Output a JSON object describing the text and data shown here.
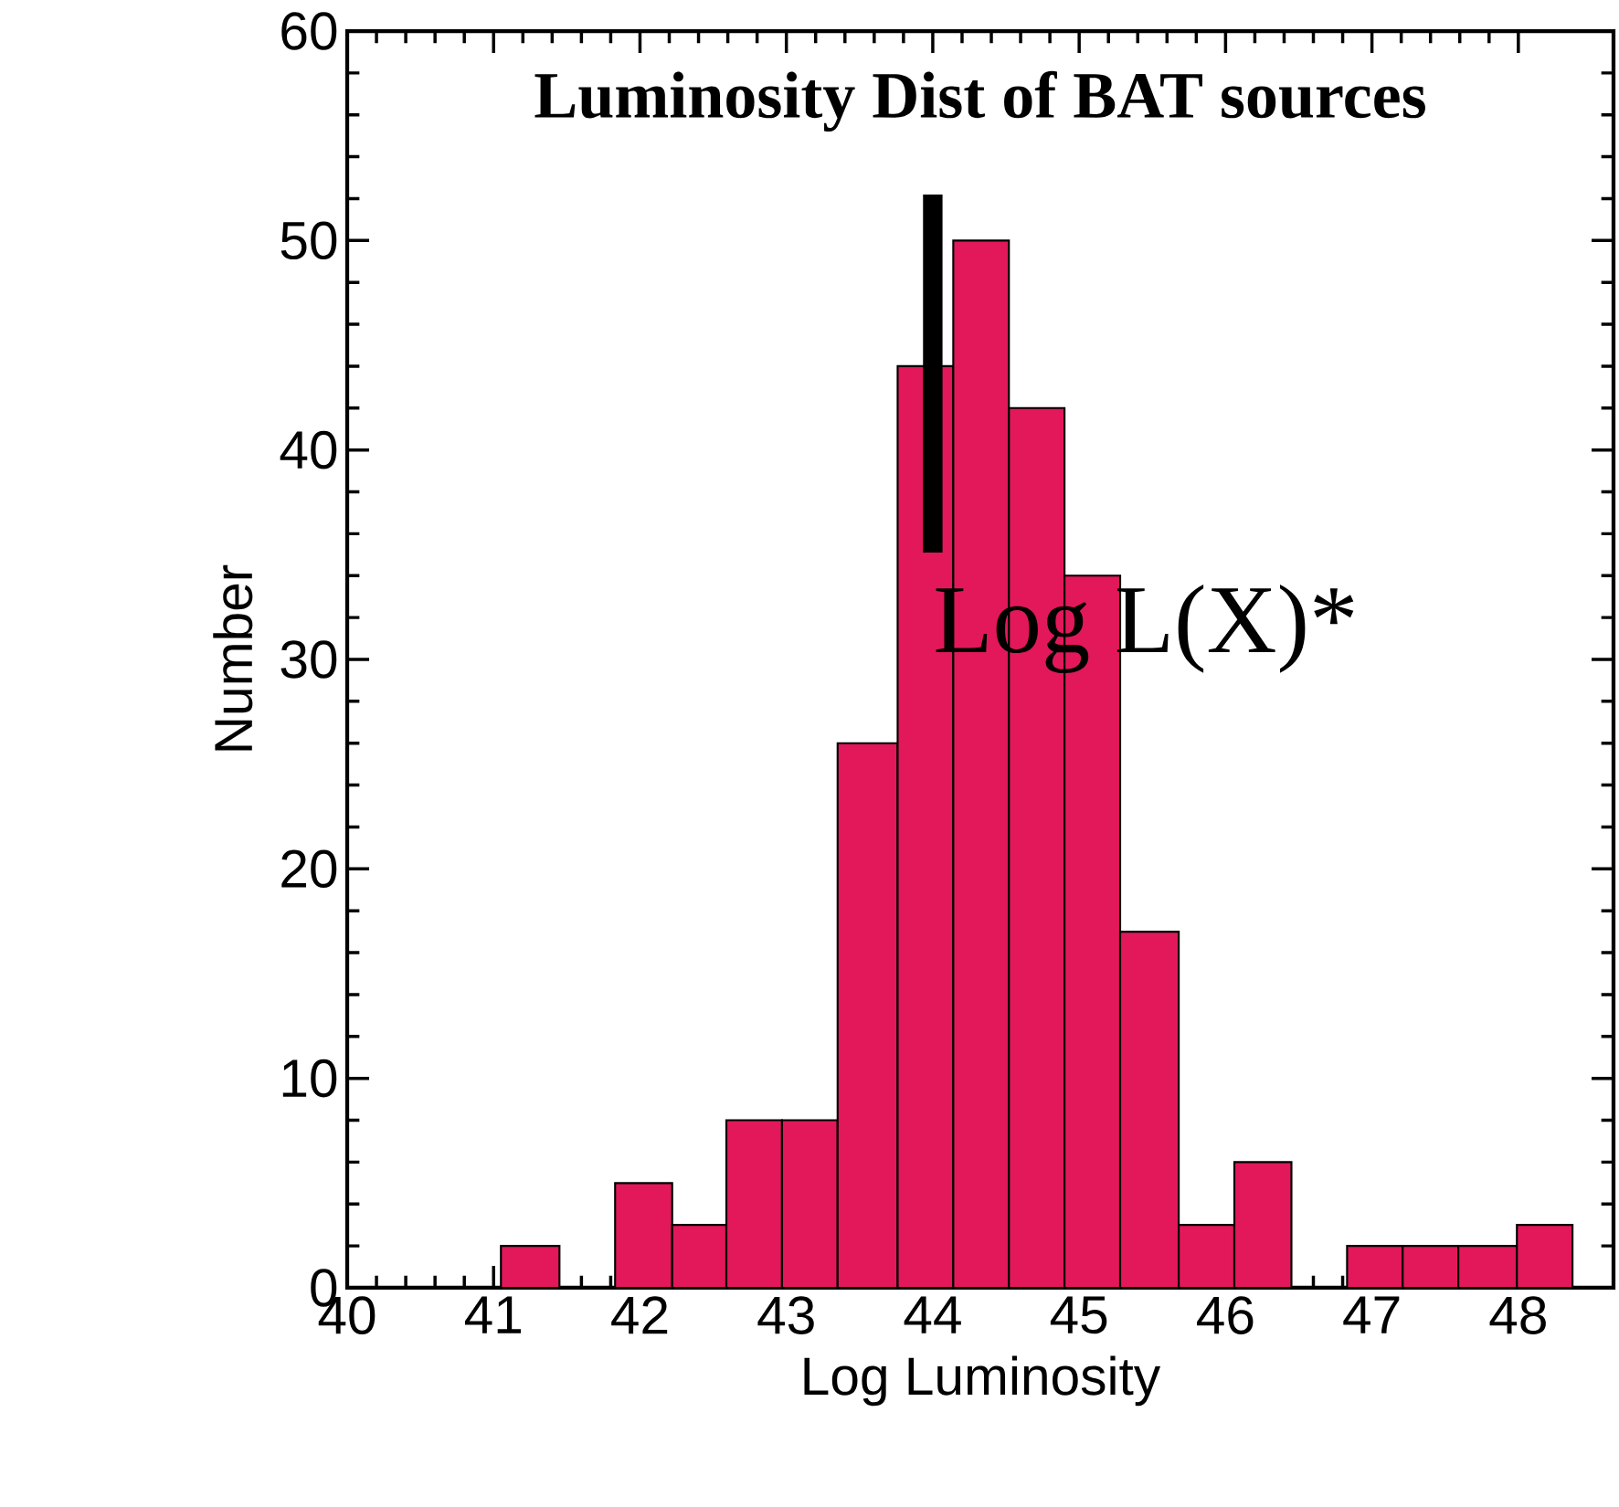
{
  "chart_data": {
    "type": "histogram",
    "title": "Luminosity Dist of BAT sources",
    "xlabel": "Log Luminosity",
    "ylabel": "Number",
    "bins": [
      41.05,
      41.45,
      41.83,
      42.22,
      42.59,
      42.97,
      43.35,
      43.76,
      44.14,
      44.52,
      44.9,
      45.28,
      45.68,
      46.06,
      46.45,
      46.83,
      47.21,
      47.59,
      47.99,
      48.37
    ],
    "values": [
      2,
      0,
      5,
      3,
      8,
      8,
      26,
      44,
      50,
      42,
      34,
      17,
      3,
      6,
      0,
      2,
      2,
      2,
      3
    ],
    "color": "#e2185b",
    "xlim": [
      40,
      48.65
    ],
    "xticks": [
      40,
      41,
      42,
      43,
      44,
      45,
      46,
      47,
      48
    ],
    "ylim": [
      0,
      60
    ],
    "yticks": [
      0,
      10,
      20,
      30,
      40,
      50,
      60
    ],
    "ref_lines": [
      {
        "axis": "x",
        "value": 44,
        "label": "Log L(X)*",
        "color": "#000000"
      }
    ]
  }
}
